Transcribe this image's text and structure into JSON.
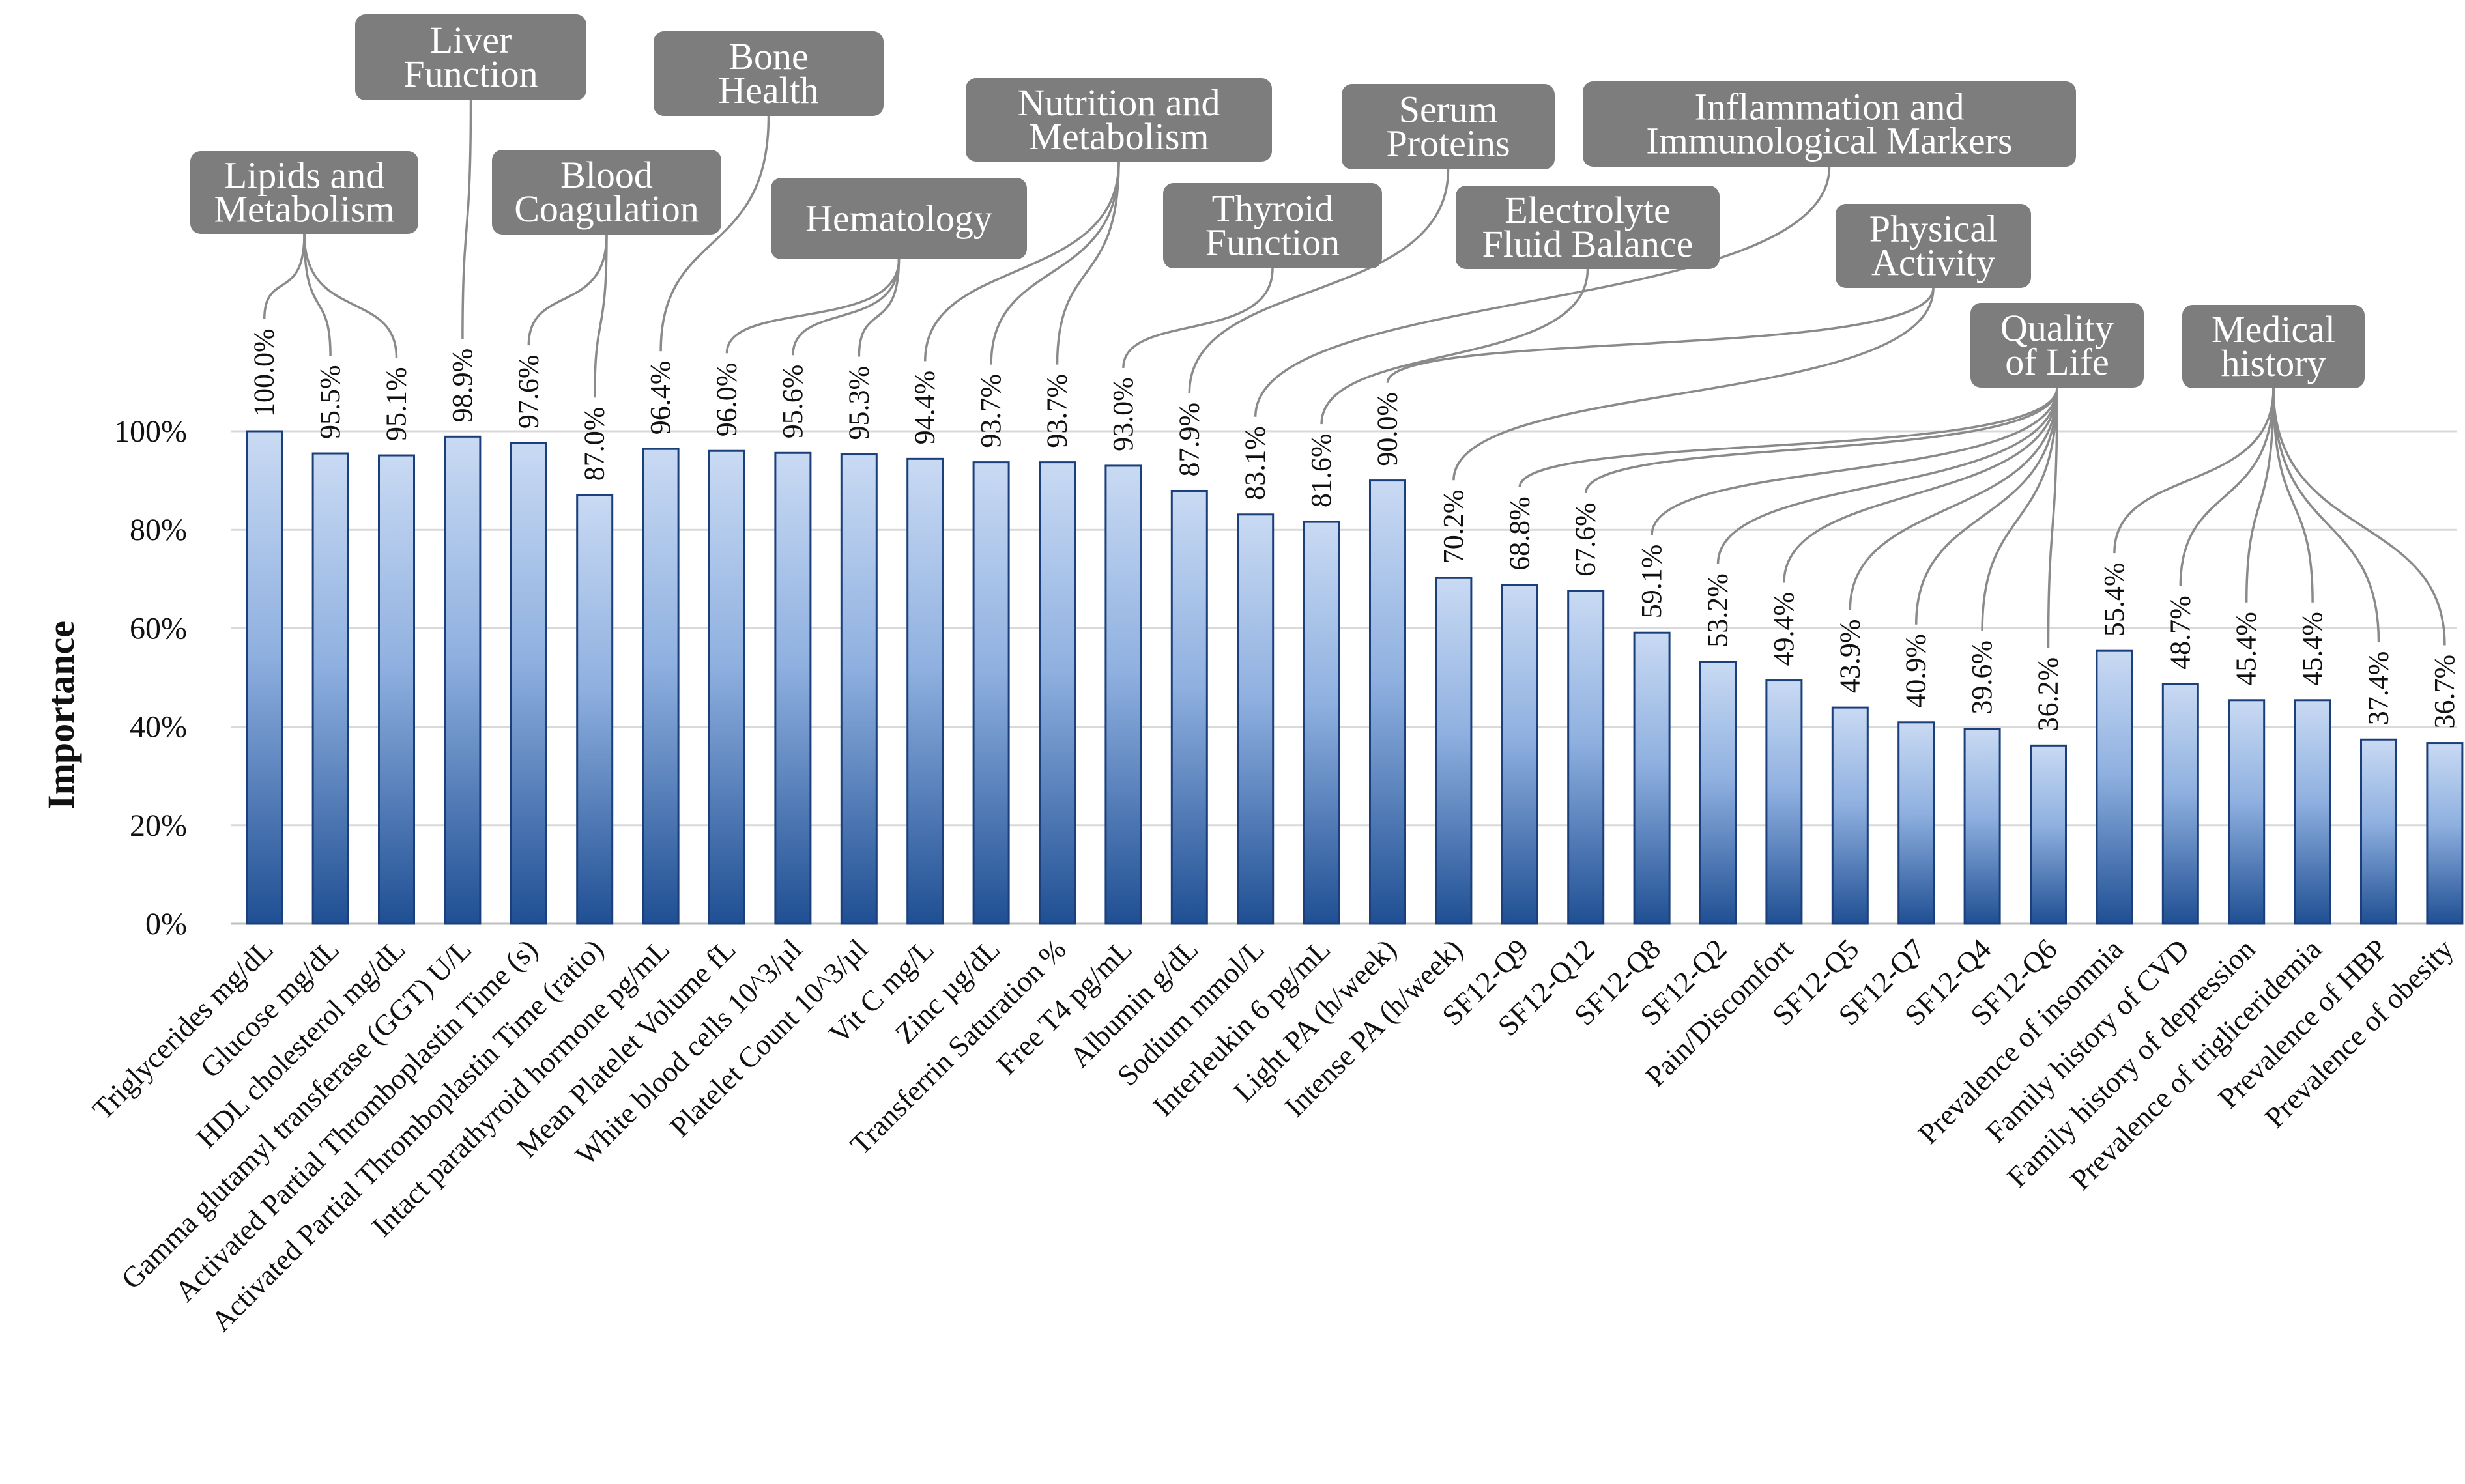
{
  "chart_data": {
    "type": "bar",
    "title": "",
    "xlabel": "",
    "ylabel": "Importance",
    "ylim": [
      0,
      100
    ],
    "yticks": [
      "0%",
      "20%",
      "40%",
      "60%",
      "80%",
      "100%"
    ],
    "grid": true,
    "colors": {
      "bar_top": "#c9daf3",
      "bar_bottom": "#1f4f93",
      "box": "#7d7d7d",
      "leader": "#8a8a8a"
    },
    "categories": [
      "Triglycerides mg/dL",
      "Glucose mg/dL",
      "HDL cholesterol mg/dL",
      "Gamma glutamyl transferase (GGT) U/L",
      "Activated Partial Thromboplastin Time (s)",
      "Activated Partial Thromboplastin Time (ratio)",
      "Intact parathyroid hormone pg/mL",
      "Mean Platelet Volume fL",
      "White blood cells 10^3/µl",
      "Platelet Count 10^3/µl",
      "Vit C mg/L",
      "Zinc µg/dL",
      "Transferrin Saturation %",
      "Free T4 pg/mL",
      "Albumin g/dL",
      "Sodium mmol/L",
      "Interleukin 6 pg/mL",
      "Light PA (h/week)",
      "Intense PA (h/week)",
      "SF12-Q9",
      "SF12-Q12",
      "SF12-Q8",
      "SF12-Q2",
      "Pain/Discomfort",
      "SF12-Q5",
      "SF12-Q7",
      "SF12-Q4",
      "SF12-Q6",
      "Prevalence of insomnia",
      "Family history of CVD",
      "Family history of depression",
      "Prevalence of trigliceridemia",
      "Prevalence of HBP",
      "Prevalence of obesity"
    ],
    "values": [
      100.0,
      95.5,
      95.1,
      98.9,
      97.6,
      87.0,
      96.4,
      96.0,
      95.6,
      95.3,
      94.4,
      93.7,
      93.7,
      93.0,
      87.9,
      83.1,
      81.6,
      90.0,
      70.2,
      68.8,
      67.6,
      59.1,
      53.2,
      49.4,
      43.9,
      40.9,
      39.6,
      36.2,
      55.4,
      48.7,
      45.4,
      45.4,
      37.4,
      36.7
    ],
    "value_labels": [
      "100.0%",
      "95.5%",
      "95.1%",
      "98.9%",
      "97.6%",
      "87.0%",
      "96.4%",
      "96.0%",
      "95.6%",
      "95.3%",
      "94.4%",
      "93.7%",
      "93.7%",
      "93.0%",
      "87.9%",
      "83.1%",
      "81.6%",
      "90.0%",
      "70.2%",
      "68.8%",
      "67.6%",
      "59.1%",
      "53.2%",
      "49.4%",
      "43.9%",
      "40.9%",
      "39.6%",
      "36.2%",
      "55.4%",
      "48.7%",
      "45.4%",
      "45.4%",
      "37.4%",
      "36.7%"
    ],
    "groups": [
      {
        "lines": [
          "Lipids and",
          "Metabolism"
        ],
        "bars": [
          0,
          1,
          2
        ]
      },
      {
        "lines": [
          "Liver",
          "Function"
        ],
        "bars": [
          3
        ]
      },
      {
        "lines": [
          "Blood",
          "Coagulation"
        ],
        "bars": [
          4,
          5
        ]
      },
      {
        "lines": [
          "Bone",
          "Health"
        ],
        "bars": [
          6
        ]
      },
      {
        "lines": [
          "Hematology"
        ],
        "bars": [
          7,
          8,
          9
        ]
      },
      {
        "lines": [
          "Nutrition and",
          "Metabolism"
        ],
        "bars": [
          10,
          11,
          12
        ]
      },
      {
        "lines": [
          "Thyroid",
          "Function"
        ],
        "bars": [
          13
        ]
      },
      {
        "lines": [
          "Serum",
          "Proteins"
        ],
        "bars": [
          14
        ]
      },
      {
        "lines": [
          "Inflammation and",
          "Immunological Markers"
        ],
        "bars": [
          15
        ]
      },
      {
        "lines": [
          "Electrolyte",
          "Fluid Balance"
        ],
        "bars": [
          16
        ]
      },
      {
        "lines": [
          "Physical",
          "Activity"
        ],
        "bars": [
          17,
          18
        ]
      },
      {
        "lines": [
          "Quality",
          "of Life"
        ],
        "bars": [
          19,
          20,
          21,
          22,
          23,
          24,
          25,
          26,
          27
        ]
      },
      {
        "lines": [
          "Medical",
          "history"
        ],
        "bars": [
          28,
          29,
          30,
          31,
          32,
          33
        ]
      }
    ]
  }
}
